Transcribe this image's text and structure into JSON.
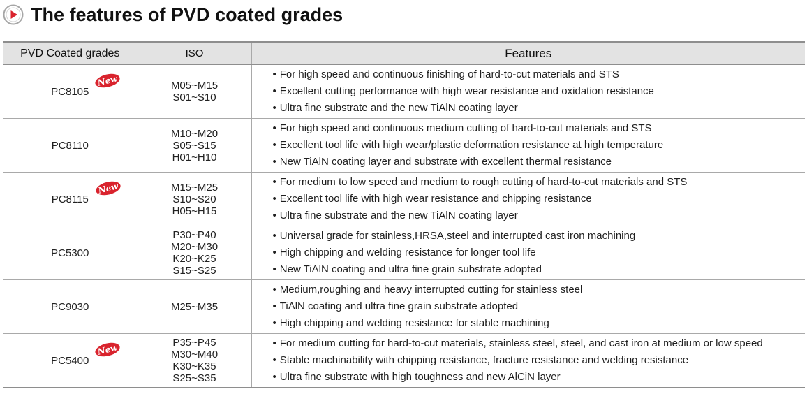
{
  "page": {
    "title": "The features of PVD coated grades",
    "title_icon": "play-circle-icon",
    "accent_color": "#d9232d"
  },
  "table": {
    "headers": {
      "grade": "PVD Coated grades",
      "iso": "ISO",
      "features": "Features"
    },
    "bullet": "•",
    "badge_text": "New",
    "rows": [
      {
        "grade": "PC8105",
        "is_new": true,
        "iso": [
          "M05~M15",
          "S01~S10"
        ],
        "features": [
          "For high speed and continuous finishing of hard-to-cut materials and STS",
          "Excellent cutting performance with high wear resistance and oxidation resistance",
          "Ultra fine substrate and the new TiAlN coating layer"
        ]
      },
      {
        "grade": "PC8110",
        "is_new": false,
        "iso": [
          "M10~M20",
          "S05~S15",
          "H01~H10"
        ],
        "features": [
          "For high speed and continuous medium cutting of hard-to-cut materials and STS",
          "Excellent tool life with high wear/plastic deformation resistance at high temperature",
          "New TiAlN coating layer and substrate with excellent thermal resistance"
        ]
      },
      {
        "grade": "PC8115",
        "is_new": true,
        "iso": [
          "M15~M25",
          "S10~S20",
          "H05~H15"
        ],
        "features": [
          "For medium to low speed and medium to rough cutting of hard-to-cut materials and STS",
          "Excellent tool life with high wear resistance and chipping resistance",
          "Ultra fine substrate and the new TiAlN coating layer"
        ]
      },
      {
        "grade": "PC5300",
        "is_new": false,
        "iso": [
          "P30~P40",
          "M20~M30",
          "K20~K25",
          "S15~S25"
        ],
        "features": [
          "Universal grade for stainless,HRSA,steel and interrupted cast iron machining",
          "High chipping and welding resistance for longer tool life",
          "New TiAlN coating and ultra fine grain substrate adopted"
        ]
      },
      {
        "grade": "PC9030",
        "is_new": false,
        "iso": [
          "M25~M35"
        ],
        "features": [
          "Medium,roughing and heavy interrupted cutting for stainless steel",
          "TiAlN coating and ultra fine grain substrate adopted",
          "High chipping and welding resistance for stable machining"
        ]
      },
      {
        "grade": "PC5400",
        "is_new": true,
        "iso": [
          "P35~P45",
          "M30~M40",
          "K30~K35",
          "S25~S35"
        ],
        "features": [
          "For medium cutting for hard-to-cut materials, stainless steel, steel, and cast iron at medium or low speed",
          "Stable machinability with chipping resistance, fracture resistance and welding resistance",
          "Ultra fine substrate with high toughness and new AlCiN layer"
        ]
      }
    ]
  }
}
